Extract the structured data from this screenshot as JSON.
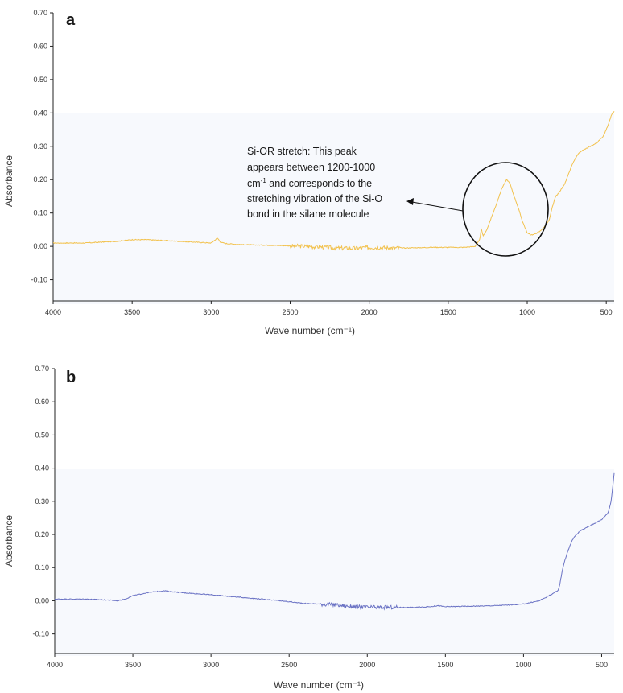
{
  "chart_data": [
    {
      "panel": "a",
      "type": "line",
      "xlabel": "Wave number (cm⁻¹)",
      "ylabel": "Absorbance",
      "xlim": [
        4000,
        450
      ],
      "ylim": [
        -0.13,
        0.7
      ],
      "x_reversed": true,
      "x_ticks": [
        "4000",
        "3500",
        "3000",
        "2500",
        "2000",
        "1500",
        "1000",
        "500"
      ],
      "y_ticks": [
        "0.70",
        "0.60",
        "0.50",
        "0.40",
        "0.30",
        "0.20",
        "0.10",
        "0.00",
        "-0.10"
      ],
      "grid": false,
      "plot_background": "#f7f9fd",
      "series": [
        {
          "color": "#f2c24e",
          "x": [
            4000,
            3800,
            3600,
            3500,
            3400,
            3200,
            3000,
            2960,
            2940,
            2900,
            2800,
            2600,
            2400,
            2300,
            2200,
            2100,
            2000,
            1900,
            1800,
            1700,
            1600,
            1500,
            1400,
            1330,
            1300,
            1290,
            1280,
            1260,
            1240,
            1200,
            1160,
            1130,
            1110,
            1090,
            1060,
            1030,
            1000,
            980,
            960,
            940,
            920,
            900,
            880,
            860,
            840,
            820,
            800,
            780,
            760,
            740,
            720,
            700,
            680,
            660,
            640,
            620,
            600,
            580,
            560,
            540,
            520,
            500,
            480,
            470,
            460,
            450
          ],
          "y": [
            0.01,
            0.01,
            0.015,
            0.02,
            0.02,
            0.015,
            0.01,
            0.025,
            0.012,
            0.008,
            0.005,
            0.003,
            0.0,
            -0.002,
            -0.005,
            -0.006,
            -0.003,
            -0.004,
            -0.005,
            -0.004,
            -0.003,
            -0.003,
            -0.003,
            0.0,
            0.02,
            0.055,
            0.03,
            0.045,
            0.07,
            0.12,
            0.175,
            0.2,
            0.19,
            0.16,
            0.12,
            0.075,
            0.04,
            0.035,
            0.035,
            0.04,
            0.045,
            0.055,
            0.065,
            0.08,
            0.12,
            0.15,
            0.16,
            0.175,
            0.19,
            0.215,
            0.24,
            0.26,
            0.275,
            0.285,
            0.29,
            0.295,
            0.3,
            0.305,
            0.31,
            0.32,
            0.33,
            0.35,
            0.375,
            0.39,
            0.4,
            0.405
          ],
          "noise": [
            [
              2500,
              1800,
              0.006
            ]
          ]
        }
      ],
      "annotation": {
        "lines": [
          {
            "text": "Si-OR stretch: This peak"
          },
          {
            "text": "appears between 1200-1000"
          },
          {
            "text": "cm",
            "sup": "-1",
            "rest": " and corresponds to the"
          },
          {
            "text": "stretching vibration of the Si-O"
          },
          {
            "text": "bond in the silane molecule"
          }
        ],
        "circle_center": [
          1120,
          0.15
        ],
        "arrow_target_x": 1430
      }
    },
    {
      "panel": "b",
      "type": "line",
      "xlabel": "Wave number (cm⁻¹)",
      "ylabel": "Absorbance",
      "xlim": [
        4000,
        420
      ],
      "ylim": [
        -0.13,
        0.7
      ],
      "x_reversed": true,
      "x_ticks": [
        "4000",
        "3500",
        "3000",
        "2500",
        "2000",
        "1500",
        "1000",
        "500"
      ],
      "y_ticks": [
        "0.70",
        "0.60",
        "0.50",
        "0.40",
        "0.30",
        "0.20",
        "0.10",
        "0.00",
        "-0.10"
      ],
      "grid": false,
      "plot_background": "#f7f9fd",
      "series": [
        {
          "color": "#6a72c4",
          "x": [
            4000,
            3800,
            3650,
            3600,
            3550,
            3500,
            3400,
            3300,
            3200,
            3000,
            2800,
            2600,
            2400,
            2200,
            2100,
            2000,
            1900,
            1800,
            1700,
            1600,
            1550,
            1500,
            1400,
            1300,
            1200,
            1100,
            1000,
            950,
            900,
            850,
            800,
            780,
            770,
            760,
            750,
            740,
            720,
            700,
            680,
            660,
            640,
            620,
            600,
            580,
            560,
            540,
            520,
            500,
            480,
            460,
            450,
            440,
            430,
            420
          ],
          "y": [
            0.005,
            0.005,
            0.002,
            0.0,
            0.005,
            0.015,
            0.025,
            0.03,
            0.025,
            0.018,
            0.01,
            0.002,
            -0.008,
            -0.012,
            -0.018,
            -0.02,
            -0.02,
            -0.02,
            -0.02,
            -0.018,
            -0.015,
            -0.018,
            -0.017,
            -0.016,
            -0.015,
            -0.013,
            -0.01,
            -0.005,
            0.0,
            0.012,
            0.025,
            0.03,
            0.045,
            0.07,
            0.095,
            0.115,
            0.145,
            0.17,
            0.19,
            0.2,
            0.21,
            0.215,
            0.22,
            0.225,
            0.23,
            0.235,
            0.24,
            0.245,
            0.255,
            0.265,
            0.28,
            0.3,
            0.34,
            0.385
          ],
          "noise": [
            [
              2300,
              1800,
              0.006
            ]
          ]
        }
      ]
    }
  ]
}
